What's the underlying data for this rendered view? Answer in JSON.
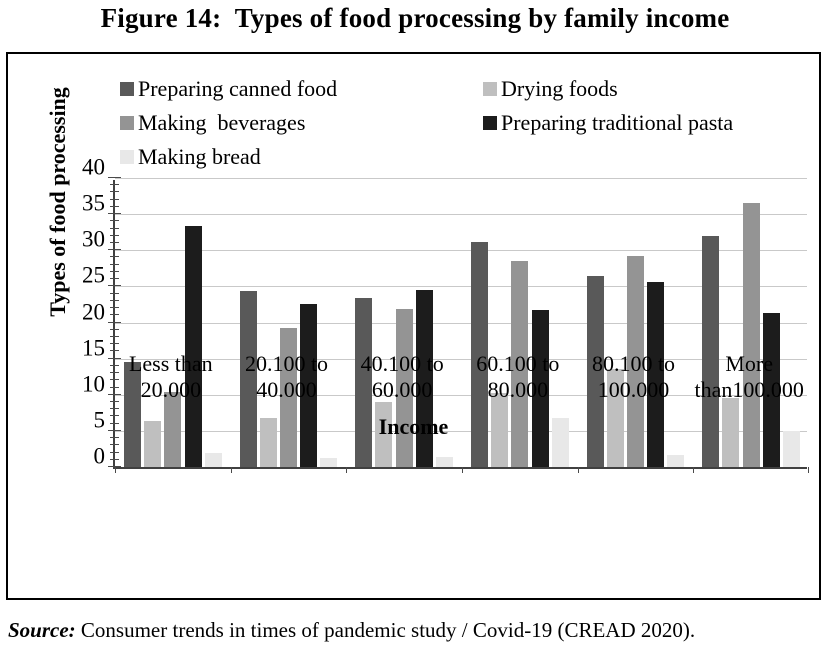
{
  "title": "Figure 14:  Types of food processing by family income",
  "source": {
    "label": "Source:",
    "text": " Consumer trends in times of pandemic study / Covid-19 (CREAD 2020)."
  },
  "chart_data": {
    "type": "bar",
    "title": "Figure 14: Types of food processing by family income",
    "xlabel": "Income",
    "ylabel": "Types of food processing",
    "ylim": [
      0,
      40
    ],
    "yticks": [
      0,
      5,
      10,
      15,
      20,
      25,
      30,
      35,
      40
    ],
    "minor_tick_step": 1,
    "grid": true,
    "legend_position": "top-inside",
    "categories": [
      "Less than 20.000",
      "20.100 to 40.000",
      "40.100 to 60.000",
      "60.100 to 80.000",
      "80.100 to 100.000",
      "More than100.000"
    ],
    "category_label_lines": [
      [
        "Less than",
        "20.000"
      ],
      [
        "20.100 to",
        "40.000"
      ],
      [
        "40.100 to",
        "60.000"
      ],
      [
        "60.100 to",
        "80.000"
      ],
      [
        "80.100 to",
        "100.000"
      ],
      [
        "More",
        "than100.000"
      ]
    ],
    "series": [
      {
        "name": "Preparing canned food",
        "color": "#595959",
        "values": [
          14.5,
          24.3,
          23.4,
          31.1,
          26.5,
          32.0
        ]
      },
      {
        "name": "Drying foods",
        "color": "#bfbfbf",
        "values": [
          6.3,
          6.8,
          9.0,
          10.2,
          13.5,
          9.5
        ]
      },
      {
        "name": "Making  beverages",
        "color": "#949494",
        "values": [
          10.4,
          19.3,
          21.9,
          28.5,
          29.2,
          36.5
        ]
      },
      {
        "name": "Preparing traditional pasta",
        "color": "#1c1c1c",
        "values": [
          33.4,
          22.5,
          24.5,
          21.7,
          25.6,
          21.3
        ]
      },
      {
        "name": "Making bread",
        "color": "#e8e8e8",
        "values": [
          2.0,
          1.2,
          1.4,
          6.8,
          1.6,
          5.0
        ]
      }
    ]
  }
}
